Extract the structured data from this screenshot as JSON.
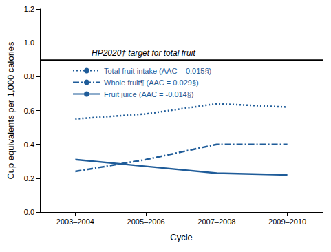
{
  "chart_data": {
    "type": "line",
    "x_label": "Cycle",
    "y_label": "Cup equivalents per 1,000 calories",
    "categories": [
      "2003–2004",
      "2005–2006",
      "2007–2008",
      "2009–2010"
    ],
    "series": [
      {
        "name": "Total fruit intake (AAC = 0.015§)",
        "color": "#1f5c99",
        "line_style": "dotted",
        "values": [
          0.55,
          0.58,
          0.64,
          0.62
        ]
      },
      {
        "name": "Whole fruit¶ (AAC = 0.029§)",
        "color": "#1f5c99",
        "line_style": "dashdot",
        "values": [
          0.24,
          0.31,
          0.4,
          0.4
        ]
      },
      {
        "name": "Fruit juice (AAC = -0.014§)",
        "color": "#1f5c99",
        "line_style": "solid",
        "values": [
          0.31,
          0.27,
          0.23,
          0.22
        ]
      }
    ],
    "annotations": [
      {
        "text": "HP2020† target for total fruit",
        "y": 0.9,
        "color": "#000000"
      }
    ],
    "ylim": [
      0,
      1.2
    ],
    "yticks": [
      {
        "value": 0,
        "label": "0.0"
      },
      0.2,
      0.4,
      0.6,
      0.8,
      {
        "value": 1,
        "label": "1.0"
      },
      1.2
    ],
    "grid": false,
    "legend": "upper left"
  }
}
